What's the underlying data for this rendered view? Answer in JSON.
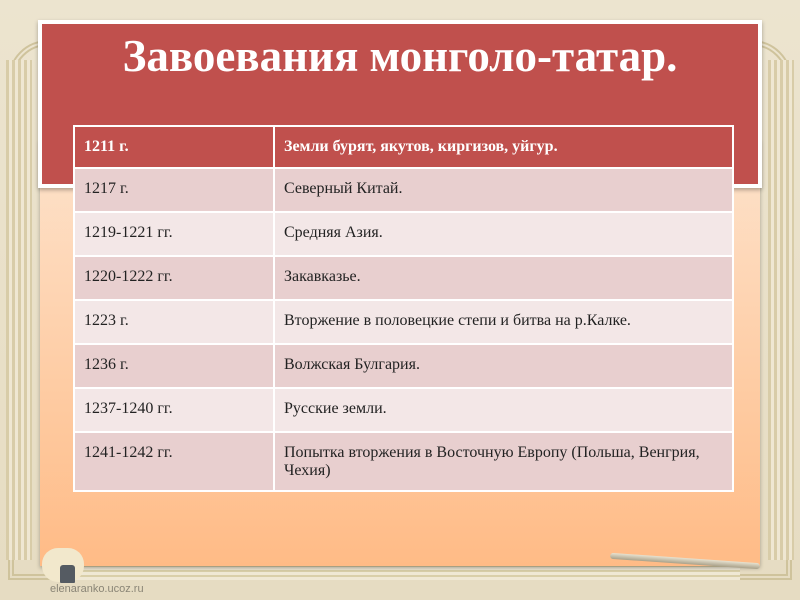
{
  "title": "Завоевания монголо-татар.",
  "table": {
    "header": {
      "year": "1211 г.",
      "event": "Земли бурят, якутов, киргизов, уйгур."
    },
    "rows": [
      {
        "year": "1217 г.",
        "event": "Северный Китай."
      },
      {
        "year": "1219-1221 гг.",
        "event": "Средняя Азия."
      },
      {
        "year": "1220-1222 гг.",
        "event": "Закавказье."
      },
      {
        "year": "1223 г.",
        "event": "Вторжение в половецкие степи и битва на р.Калке."
      },
      {
        "year": "1236 г.",
        "event": "Волжская Булгария."
      },
      {
        "year": "1237-1240 гг.",
        "event": "Русские земли."
      },
      {
        "year": "1241-1242 гг.",
        "event": "Попытка вторжения в Восточную Европу (Польша, Венгрия, Чехия)"
      }
    ]
  },
  "watermark": "elenaranko.ucoz.ru",
  "colors": {
    "title_bg": "#c0504d",
    "panel": "#ffbb86",
    "row_odd": "#e8cfcf",
    "row_even": "#f3e7e7"
  }
}
